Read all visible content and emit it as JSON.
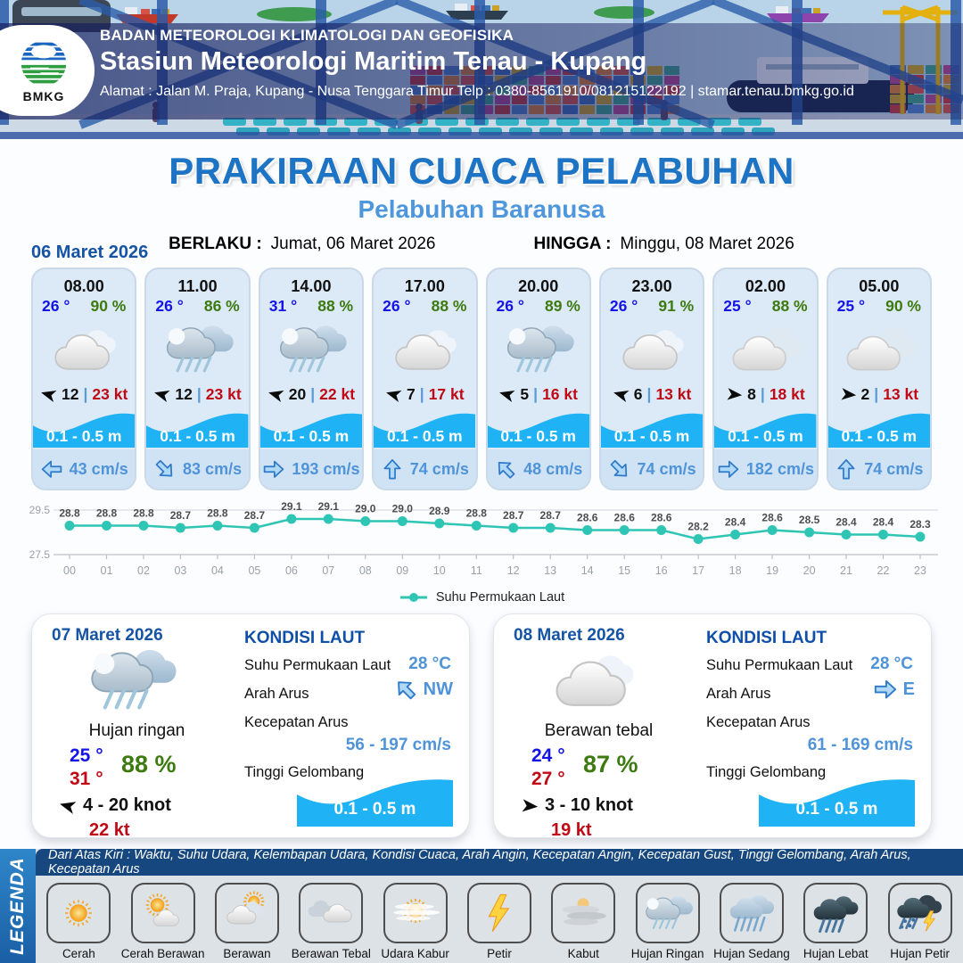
{
  "header": {
    "agency": "BADAN METEOROLOGI KLIMATOLOGI DAN GEOFISIKA",
    "station": "Stasiun Meteorologi Maritim Tenau - Kupang",
    "address": "Alamat : Jalan M. Praja, Kupang - Nusa Tenggara Timur Telp : 0380-8561910/081215122192  | stamar.tenau.bmkg.go.id",
    "logo_text": "BMKG"
  },
  "title": {
    "main": "PRAKIRAAN CUACA PELABUHAN",
    "subtitle": "Pelabuhan Baranusa",
    "valid_from_label": "BERLAKU :",
    "valid_from": "Jumat, 06 Maret 2026",
    "valid_to_label": "HINGGA :",
    "valid_to": "Minggu, 08 Maret 2026"
  },
  "hourly": {
    "date_label": "06 Maret 2026",
    "divider": "|",
    "cards": [
      {
        "time": "08.00",
        "temp": "26 °",
        "humidity": "90 %",
        "icon": "awan",
        "wind_speed": "12",
        "wind_gust": "23 kt",
        "wind_dir_deg": 195,
        "wave": "0.1 - 0.5 m",
        "current_speed": "43 cm/s",
        "current_dir_deg": 180
      },
      {
        "time": "11.00",
        "temp": "26 °",
        "humidity": "86 %",
        "icon": "hujan-ringan",
        "wind_speed": "12",
        "wind_gust": "23 kt",
        "wind_dir_deg": 195,
        "wave": "0.1 - 0.5 m",
        "current_speed": "83 cm/s",
        "current_dir_deg": 45
      },
      {
        "time": "14.00",
        "temp": "31 °",
        "humidity": "88 %",
        "icon": "hujan-ringan",
        "wind_speed": "20",
        "wind_gust": "22 kt",
        "wind_dir_deg": 195,
        "wave": "0.1 - 0.5 m",
        "current_speed": "193 cm/s",
        "current_dir_deg": 0
      },
      {
        "time": "17.00",
        "temp": "26 °",
        "humidity": "88 %",
        "icon": "awan",
        "wind_speed": "7",
        "wind_gust": "17 kt",
        "wind_dir_deg": 195,
        "wave": "0.1 - 0.5 m",
        "current_speed": "74 cm/s",
        "current_dir_deg": -90
      },
      {
        "time": "20.00",
        "temp": "26 °",
        "humidity": "89 %",
        "icon": "hujan-ringan",
        "wind_speed": "5",
        "wind_gust": "16 kt",
        "wind_dir_deg": 195,
        "wave": "0.1 - 0.5 m",
        "current_speed": "48 cm/s",
        "current_dir_deg": -135
      },
      {
        "time": "23.00",
        "temp": "26 °",
        "humidity": "91 %",
        "icon": "awan",
        "wind_speed": "6",
        "wind_gust": "13 kt",
        "wind_dir_deg": 195,
        "wave": "0.1 - 0.5 m",
        "current_speed": "74 cm/s",
        "current_dir_deg": 45
      },
      {
        "time": "02.00",
        "temp": "25 °",
        "humidity": "88 %",
        "icon": "awan-ganda",
        "wind_speed": "8",
        "wind_gust": "18 kt",
        "wind_dir_deg": 5,
        "wave": "0.1 - 0.5 m",
        "current_speed": "182 cm/s",
        "current_dir_deg": 0
      },
      {
        "time": "05.00",
        "temp": "25 °",
        "humidity": "90 %",
        "icon": "awan-ganda",
        "wind_speed": "2",
        "wind_gust": "13 kt",
        "wind_dir_deg": 5,
        "wave": "0.1 - 0.5 m",
        "current_speed": "74 cm/s",
        "current_dir_deg": -90
      }
    ]
  },
  "chart_data": {
    "type": "line",
    "x": [
      "00",
      "01",
      "02",
      "03",
      "04",
      "05",
      "06",
      "07",
      "08",
      "09",
      "10",
      "11",
      "12",
      "13",
      "14",
      "15",
      "16",
      "17",
      "18",
      "19",
      "20",
      "21",
      "22",
      "23"
    ],
    "series": [
      {
        "name": "Suhu Permukaan Laut",
        "values": [
          28.8,
          28.8,
          28.8,
          28.7,
          28.8,
          28.7,
          29.1,
          29.1,
          29.0,
          29.0,
          28.9,
          28.8,
          28.7,
          28.7,
          28.6,
          28.6,
          28.6,
          28.2,
          28.4,
          28.6,
          28.5,
          28.4,
          28.4,
          28.3
        ]
      }
    ],
    "ylim": [
      27.5,
      29.5
    ],
    "yticks": [
      29.5,
      27.5
    ],
    "color": "#2fc5b5",
    "grid": true,
    "legend_position": "bottom"
  },
  "daily": [
    {
      "date": "07 Maret 2026",
      "icon": "hujan-ringan",
      "condition": "Hujan ringan",
      "temp_min": "25 °",
      "temp_max": "31 °",
      "humidity": "88 %",
      "wind_dir_deg": 195,
      "wind": "4 - 20 knot",
      "gust": "22 kt",
      "sea": {
        "title": "KONDISI LAUT",
        "sst_label": "Suhu Permukaan Laut",
        "sst": "28 °C",
        "current_dir_label": "Arah Arus",
        "current_dir": "NW",
        "current_dir_deg": -135,
        "current_speed_label": "Kecepatan Arus",
        "current_speed": "56 - 197 cm/s",
        "wave_label": "Tinggi Gelombang",
        "wave": "0.1 - 0.5 m"
      }
    },
    {
      "date": "08 Maret 2026",
      "icon": "awan",
      "condition": "Berawan tebal",
      "temp_min": "24 °",
      "temp_max": "27 °",
      "humidity": "87 %",
      "wind_dir_deg": 5,
      "wind": "3 - 10 knot",
      "gust": "19 kt",
      "sea": {
        "title": "KONDISI LAUT",
        "sst_label": "Suhu Permukaan Laut",
        "sst": "28 °C",
        "current_dir_label": "Arah Arus",
        "current_dir": "E",
        "current_dir_deg": 0,
        "current_speed_label": "Kecepatan Arus",
        "current_speed": "61 - 169 cm/s",
        "wave_label": "Tinggi Gelombang",
        "wave": "0.1 - 0.5 m"
      }
    }
  ],
  "legend": {
    "sidebar": "LEGENDA",
    "note": "Dari Atas Kiri : Waktu, Suhu Udara, Kelembapan Udara, Kondisi Cuaca, Arah Angin, Kecepatan Angin, Kecepatan Gust, Tinggi Gelombang, Arah Arus, Kecepatan Arus",
    "items": [
      {
        "label": "Cerah",
        "icon": "cerah"
      },
      {
        "label": "Cerah Berawan",
        "icon": "cerah-berawan"
      },
      {
        "label": "Berawan",
        "icon": "berawan"
      },
      {
        "label": "Berawan Tebal",
        "icon": "berawan-tebal"
      },
      {
        "label": "Udara Kabur",
        "icon": "udara-kabur"
      },
      {
        "label": "Petir",
        "icon": "petir"
      },
      {
        "label": "Kabut",
        "icon": "kabut"
      },
      {
        "label": "Hujan Ringan",
        "icon": "hujan-ringan"
      },
      {
        "label": "Hujan Sedang",
        "icon": "hujan-sedang"
      },
      {
        "label": "Hujan Lebat",
        "icon": "hujan-lebat"
      },
      {
        "label": "Hujan Petir",
        "icon": "hujan-petir"
      }
    ]
  },
  "colors": {
    "accent_blue": "#1e74c4",
    "subtitle_blue": "#4e97dc",
    "date_blue": "#1553a5",
    "temp_blue": "#1414e8",
    "humidity_green": "#3d7a10",
    "gust_red": "#c00914",
    "wave_cyan": "#1fb3f5",
    "current_blue": "#4f93d8",
    "chart_teal": "#2fc5b5"
  }
}
